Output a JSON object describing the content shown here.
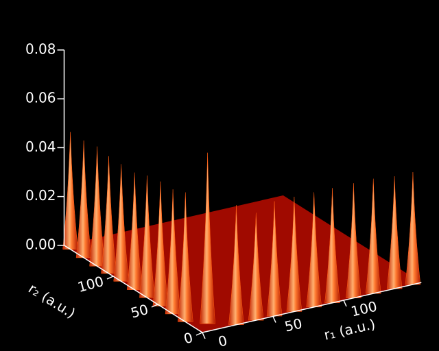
{
  "chart_data": {
    "type": "surface",
    "x_label": "r₁ (a.u.)",
    "y_label": "r₂ (a.u.)",
    "xlim": [
      0,
      155
    ],
    "ylim": [
      0,
      155
    ],
    "zlim": [
      0,
      0.08
    ],
    "xticks": [
      0,
      50,
      100
    ],
    "yticks": [
      0,
      50,
      100
    ],
    "zticks": [
      {
        "value": 0,
        "label": "0.00"
      },
      {
        "value": 0.02,
        "label": "0.02"
      },
      {
        "value": 0.04,
        "label": "0.04"
      },
      {
        "value": 0.06,
        "label": "0.06"
      },
      {
        "value": 0.08,
        "label": "0.08"
      }
    ],
    "floor_color": "#a00a00",
    "peak_color": "#ff5a10",
    "axis_color": "#ffffff",
    "peaks": {
      "r1": [
        149,
        136,
        121,
        107,
        92,
        79,
        65,
        51,
        38,
        24,
        0,
        0,
        0,
        0,
        0,
        0,
        0,
        0,
        0,
        0,
        10
      ],
      "r2": [
        0,
        0,
        0,
        0,
        0,
        0,
        0,
        0,
        0,
        0,
        148,
        133,
        118,
        105,
        91,
        76,
        62,
        47,
        33,
        19,
        10
      ],
      "z": [
        0.046,
        0.046,
        0.047,
        0.047,
        0.047,
        0.047,
        0.047,
        0.047,
        0.044,
        0.049,
        0.048,
        0.048,
        0.049,
        0.048,
        0.048,
        0.048,
        0.05,
        0.051,
        0.051,
        0.053,
        0.07
      ]
    }
  }
}
